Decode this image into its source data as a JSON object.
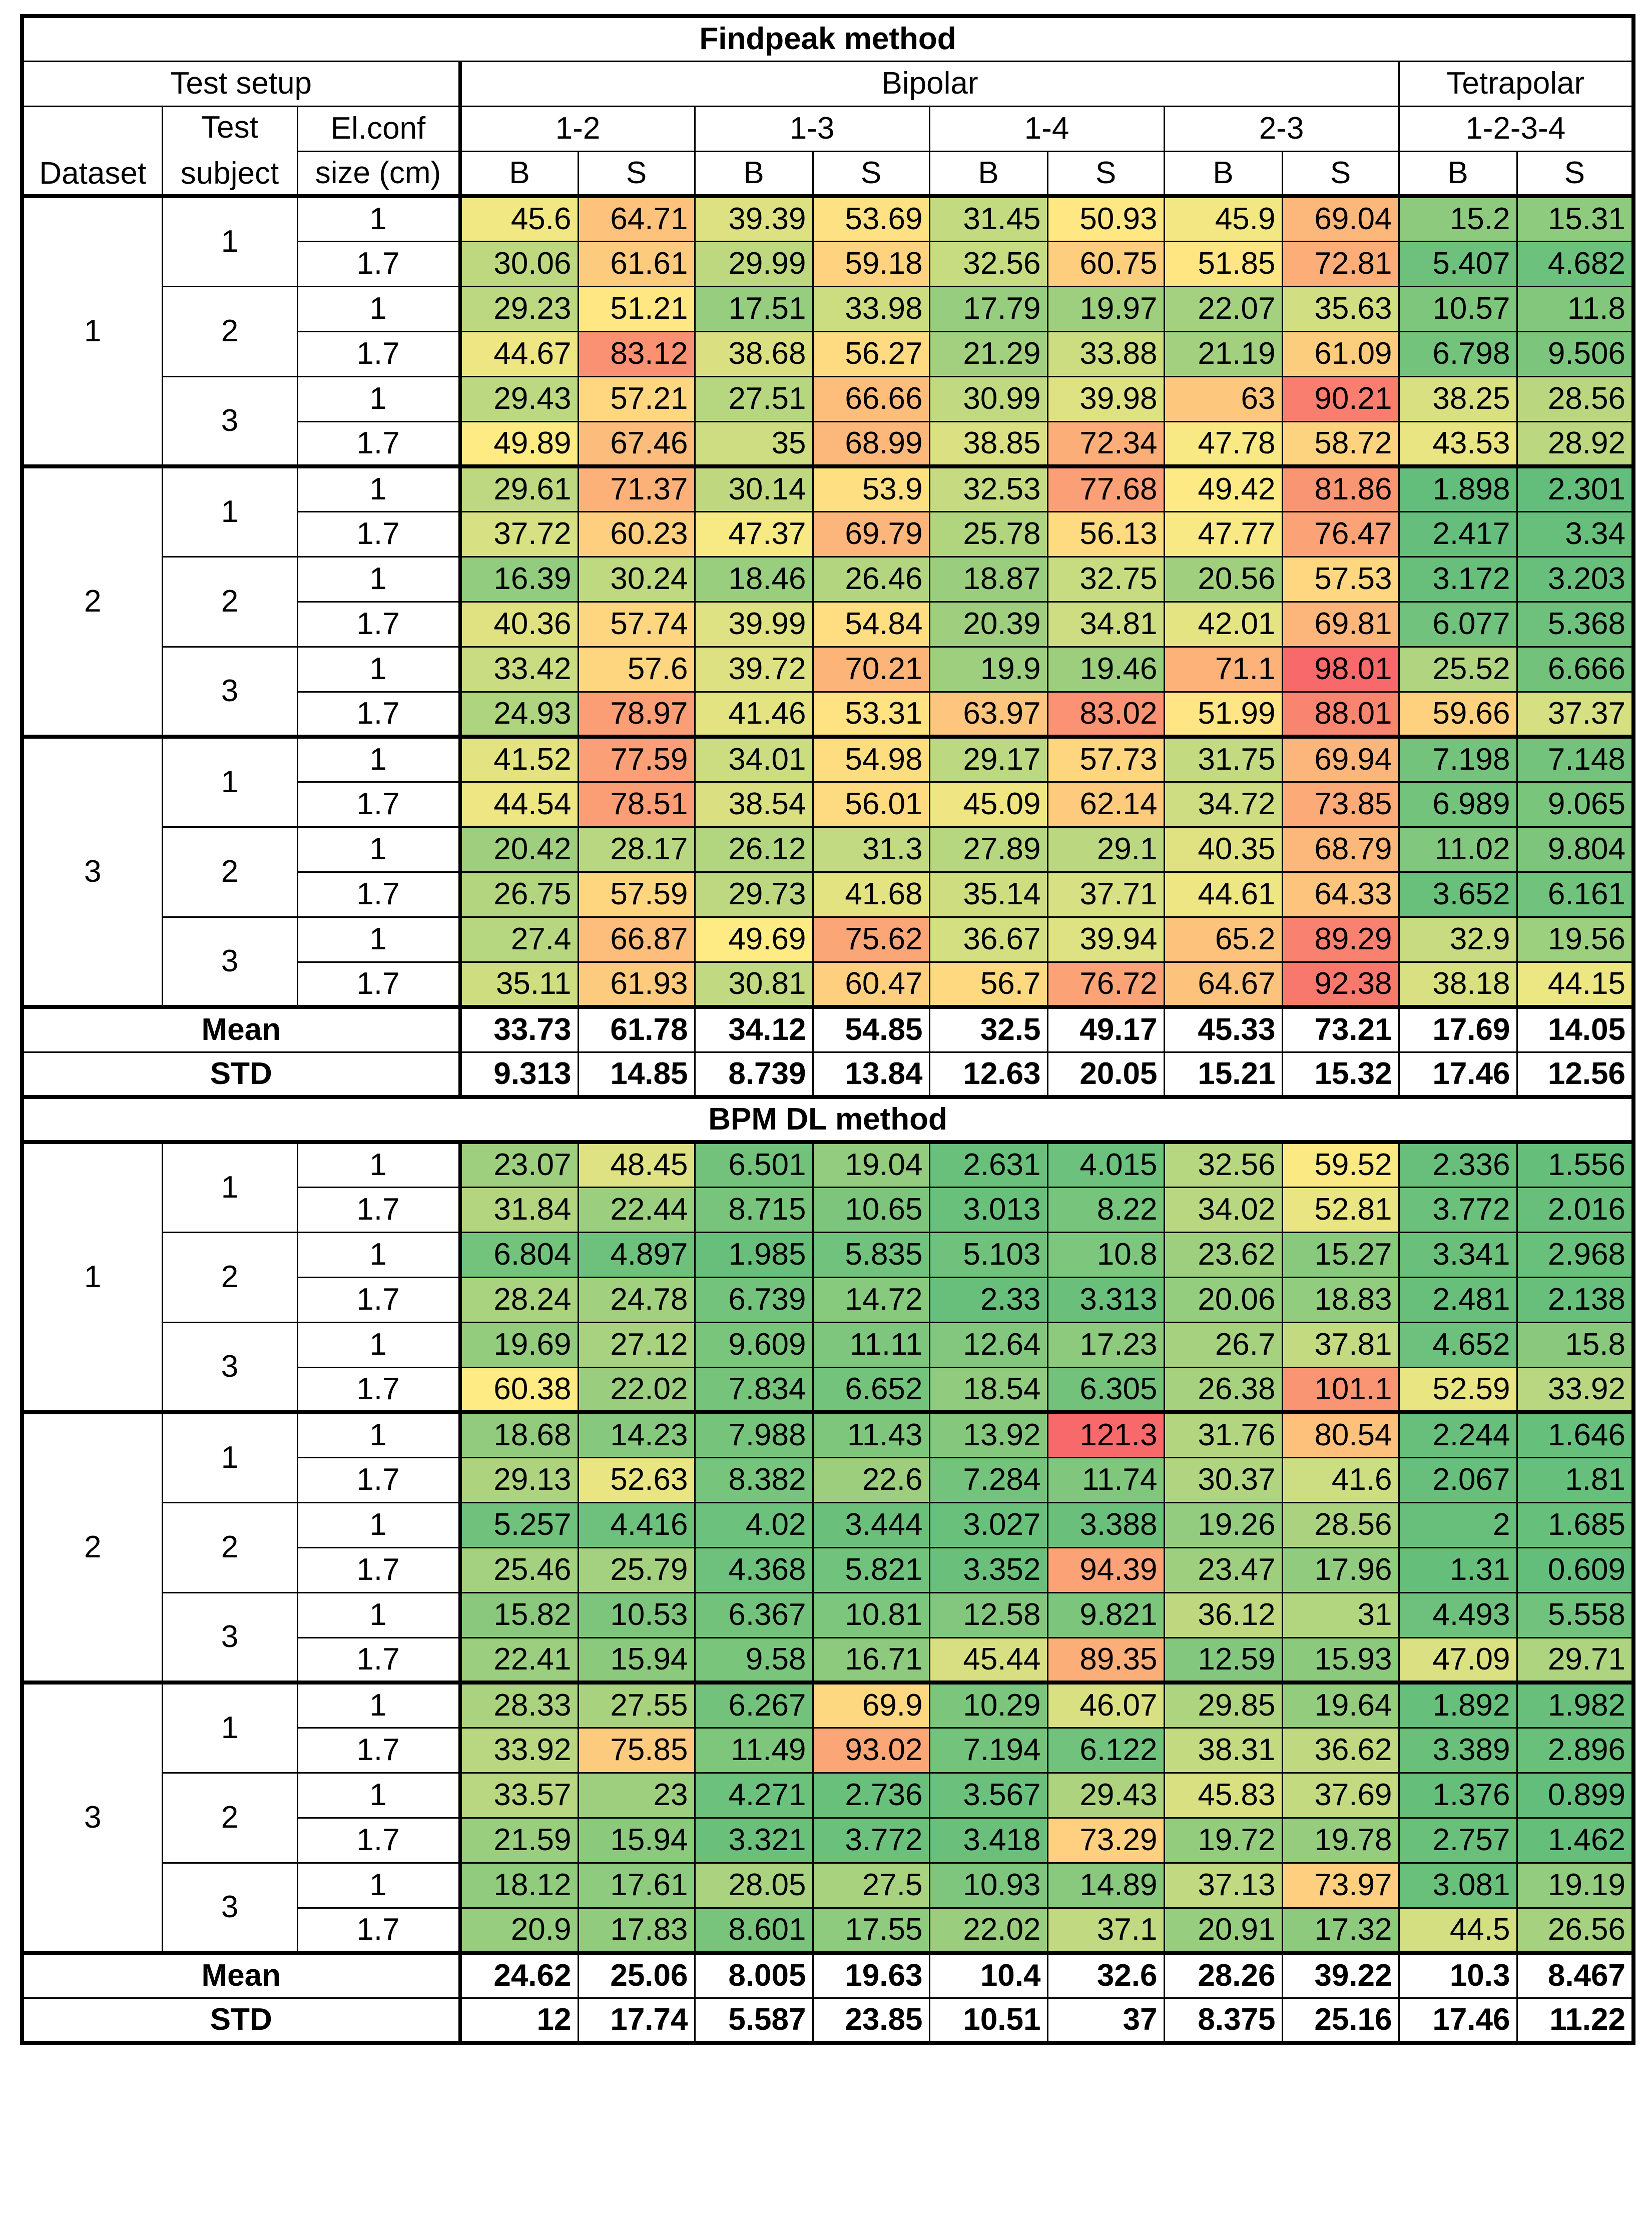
{
  "header": {
    "title1": "Findpeak method",
    "title2": "BPM DL method",
    "test_setup": "Test setup",
    "bipolar": "Bipolar",
    "tetrapolar": "Tetrapolar",
    "dataset": "Dataset",
    "test_subject_1": "Test",
    "test_subject_2": "subject",
    "elconf_1": "El.conf",
    "elconf_2": "size (cm)",
    "configs": [
      "1-2",
      "1-3",
      "1-4",
      "2-3",
      "1-2-3-4"
    ],
    "sub_cols": [
      "B",
      "S",
      "B",
      "S",
      "B",
      "S",
      "B",
      "S",
      "B",
      "S"
    ]
  },
  "findpeak": {
    "rows": [
      {
        "dataset": "1",
        "subject": "1",
        "size": "1",
        "values": [
          "45.6",
          "64.71",
          "39.39",
          "53.69",
          "31.45",
          "50.93",
          "45.9",
          "69.04",
          "15.2",
          "15.31"
        ]
      },
      {
        "dataset": "1",
        "subject": "1",
        "size": "1.7",
        "values": [
          "30.06",
          "61.61",
          "29.99",
          "59.18",
          "32.56",
          "60.75",
          "51.85",
          "72.81",
          "5.407",
          "4.682"
        ]
      },
      {
        "dataset": "1",
        "subject": "2",
        "size": "1",
        "values": [
          "29.23",
          "51.21",
          "17.51",
          "33.98",
          "17.79",
          "19.97",
          "22.07",
          "35.63",
          "10.57",
          "11.8"
        ]
      },
      {
        "dataset": "1",
        "subject": "2",
        "size": "1.7",
        "values": [
          "44.67",
          "83.12",
          "38.68",
          "56.27",
          "21.29",
          "33.88",
          "21.19",
          "61.09",
          "6.798",
          "9.506"
        ]
      },
      {
        "dataset": "1",
        "subject": "3",
        "size": "1",
        "values": [
          "29.43",
          "57.21",
          "27.51",
          "66.66",
          "30.99",
          "39.98",
          "63",
          "90.21",
          "38.25",
          "28.56"
        ]
      },
      {
        "dataset": "1",
        "subject": "3",
        "size": "1.7",
        "values": [
          "49.89",
          "67.46",
          "35",
          "68.99",
          "38.85",
          "72.34",
          "47.78",
          "58.72",
          "43.53",
          "28.92"
        ]
      },
      {
        "dataset": "2",
        "subject": "1",
        "size": "1",
        "values": [
          "29.61",
          "71.37",
          "30.14",
          "53.9",
          "32.53",
          "77.68",
          "49.42",
          "81.86",
          "1.898",
          "2.301"
        ]
      },
      {
        "dataset": "2",
        "subject": "1",
        "size": "1.7",
        "values": [
          "37.72",
          "60.23",
          "47.37",
          "69.79",
          "25.78",
          "56.13",
          "47.77",
          "76.47",
          "2.417",
          "3.34"
        ]
      },
      {
        "dataset": "2",
        "subject": "2",
        "size": "1",
        "values": [
          "16.39",
          "30.24",
          "18.46",
          "26.46",
          "18.87",
          "32.75",
          "20.56",
          "57.53",
          "3.172",
          "3.203"
        ]
      },
      {
        "dataset": "2",
        "subject": "2",
        "size": "1.7",
        "values": [
          "40.36",
          "57.74",
          "39.99",
          "54.84",
          "20.39",
          "34.81",
          "42.01",
          "69.81",
          "6.077",
          "5.368"
        ]
      },
      {
        "dataset": "2",
        "subject": "3",
        "size": "1",
        "values": [
          "33.42",
          "57.6",
          "39.72",
          "70.21",
          "19.9",
          "19.46",
          "71.1",
          "98.01",
          "25.52",
          "6.666"
        ]
      },
      {
        "dataset": "2",
        "subject": "3",
        "size": "1.7",
        "values": [
          "24.93",
          "78.97",
          "41.46",
          "53.31",
          "63.97",
          "83.02",
          "51.99",
          "88.01",
          "59.66",
          "37.37"
        ]
      },
      {
        "dataset": "3",
        "subject": "1",
        "size": "1",
        "values": [
          "41.52",
          "77.59",
          "34.01",
          "54.98",
          "29.17",
          "57.73",
          "31.75",
          "69.94",
          "7.198",
          "7.148"
        ]
      },
      {
        "dataset": "3",
        "subject": "1",
        "size": "1.7",
        "values": [
          "44.54",
          "78.51",
          "38.54",
          "56.01",
          "45.09",
          "62.14",
          "34.72",
          "73.85",
          "6.989",
          "9.065"
        ]
      },
      {
        "dataset": "3",
        "subject": "2",
        "size": "1",
        "values": [
          "20.42",
          "28.17",
          "26.12",
          "31.3",
          "27.89",
          "29.1",
          "40.35",
          "68.79",
          "11.02",
          "9.804"
        ]
      },
      {
        "dataset": "3",
        "subject": "2",
        "size": "1.7",
        "values": [
          "26.75",
          "57.59",
          "29.73",
          "41.68",
          "35.14",
          "37.71",
          "44.61",
          "64.33",
          "3.652",
          "6.161"
        ]
      },
      {
        "dataset": "3",
        "subject": "3",
        "size": "1",
        "values": [
          "27.4",
          "66.87",
          "49.69",
          "75.62",
          "36.67",
          "39.94",
          "65.2",
          "89.29",
          "32.9",
          "19.56"
        ]
      },
      {
        "dataset": "3",
        "subject": "3",
        "size": "1.7",
        "values": [
          "35.11",
          "61.93",
          "30.81",
          "60.47",
          "56.7",
          "76.72",
          "64.67",
          "92.38",
          "38.18",
          "44.15"
        ]
      }
    ],
    "mean_label": "Mean",
    "mean": [
      "33.73",
      "61.78",
      "34.12",
      "54.85",
      "32.5",
      "49.17",
      "45.33",
      "73.21",
      "17.69",
      "14.05"
    ],
    "std_label": "STD",
    "std": [
      "9.313",
      "14.85",
      "8.739",
      "13.84",
      "12.63",
      "20.05",
      "15.21",
      "15.32",
      "17.46",
      "12.56"
    ]
  },
  "bpm": {
    "rows": [
      {
        "dataset": "1",
        "subject": "1",
        "size": "1",
        "values": [
          "23.07",
          "48.45",
          "6.501",
          "19.04",
          "2.631",
          "4.015",
          "32.56",
          "59.52",
          "2.336",
          "1.556"
        ]
      },
      {
        "dataset": "1",
        "subject": "1",
        "size": "1.7",
        "values": [
          "31.84",
          "22.44",
          "8.715",
          "10.65",
          "3.013",
          "8.22",
          "34.02",
          "52.81",
          "3.772",
          "2.016"
        ]
      },
      {
        "dataset": "1",
        "subject": "2",
        "size": "1",
        "values": [
          "6.804",
          "4.897",
          "1.985",
          "5.835",
          "5.103",
          "10.8",
          "23.62",
          "15.27",
          "3.341",
          "2.968"
        ]
      },
      {
        "dataset": "1",
        "subject": "2",
        "size": "1.7",
        "values": [
          "28.24",
          "24.78",
          "6.739",
          "14.72",
          "2.33",
          "3.313",
          "20.06",
          "18.83",
          "2.481",
          "2.138"
        ]
      },
      {
        "dataset": "1",
        "subject": "3",
        "size": "1",
        "values": [
          "19.69",
          "27.12",
          "9.609",
          "11.11",
          "12.64",
          "17.23",
          "26.7",
          "37.81",
          "4.652",
          "15.8"
        ]
      },
      {
        "dataset": "1",
        "subject": "3",
        "size": "1.7",
        "values": [
          "60.38",
          "22.02",
          "7.834",
          "6.652",
          "18.54",
          "6.305",
          "26.38",
          "101.1",
          "52.59",
          "33.92"
        ]
      },
      {
        "dataset": "2",
        "subject": "1",
        "size": "1",
        "values": [
          "18.68",
          "14.23",
          "7.988",
          "11.43",
          "13.92",
          "121.3",
          "31.76",
          "80.54",
          "2.244",
          "1.646"
        ]
      },
      {
        "dataset": "2",
        "subject": "1",
        "size": "1.7",
        "values": [
          "29.13",
          "52.63",
          "8.382",
          "22.6",
          "7.284",
          "11.74",
          "30.37",
          "41.6",
          "2.067",
          "1.81"
        ]
      },
      {
        "dataset": "2",
        "subject": "2",
        "size": "1",
        "values": [
          "5.257",
          "4.416",
          "4.02",
          "3.444",
          "3.027",
          "3.388",
          "19.26",
          "28.56",
          "2",
          "1.685"
        ]
      },
      {
        "dataset": "2",
        "subject": "2",
        "size": "1.7",
        "values": [
          "25.46",
          "25.79",
          "4.368",
          "5.821",
          "3.352",
          "94.39",
          "23.47",
          "17.96",
          "1.31",
          "0.609"
        ]
      },
      {
        "dataset": "2",
        "subject": "3",
        "size": "1",
        "values": [
          "15.82",
          "10.53",
          "6.367",
          "10.81",
          "12.58",
          "9.821",
          "36.12",
          "31",
          "4.493",
          "5.558"
        ]
      },
      {
        "dataset": "2",
        "subject": "3",
        "size": "1.7",
        "values": [
          "22.41",
          "15.94",
          "9.58",
          "16.71",
          "45.44",
          "89.35",
          "12.59",
          "15.93",
          "47.09",
          "29.71"
        ]
      },
      {
        "dataset": "3",
        "subject": "1",
        "size": "1",
        "values": [
          "28.33",
          "27.55",
          "6.267",
          "69.9",
          "10.29",
          "46.07",
          "29.85",
          "19.64",
          "1.892",
          "1.982"
        ]
      },
      {
        "dataset": "3",
        "subject": "1",
        "size": "1.7",
        "values": [
          "33.92",
          "75.85",
          "11.49",
          "93.02",
          "7.194",
          "6.122",
          "38.31",
          "36.62",
          "3.389",
          "2.896"
        ]
      },
      {
        "dataset": "3",
        "subject": "2",
        "size": "1",
        "values": [
          "33.57",
          "23",
          "4.271",
          "2.736",
          "3.567",
          "29.43",
          "45.83",
          "37.69",
          "1.376",
          "0.899"
        ]
      },
      {
        "dataset": "3",
        "subject": "2",
        "size": "1.7",
        "values": [
          "21.59",
          "15.94",
          "3.321",
          "3.772",
          "3.418",
          "73.29",
          "19.72",
          "19.78",
          "2.757",
          "1.462"
        ]
      },
      {
        "dataset": "3",
        "subject": "3",
        "size": "1",
        "values": [
          "18.12",
          "17.61",
          "28.05",
          "27.5",
          "10.93",
          "14.89",
          "37.13",
          "73.97",
          "3.081",
          "19.19"
        ]
      },
      {
        "dataset": "3",
        "subject": "3",
        "size": "1.7",
        "values": [
          "20.9",
          "17.83",
          "8.601",
          "17.55",
          "22.02",
          "37.1",
          "20.91",
          "17.32",
          "44.5",
          "26.56"
        ]
      }
    ],
    "mean_label": "Mean",
    "mean": [
      "24.62",
      "25.06",
      "8.005",
      "19.63",
      "10.4",
      "32.6",
      "28.26",
      "39.22",
      "10.3",
      "8.467"
    ],
    "std_label": "STD",
    "std": [
      "12",
      "17.74",
      "5.587",
      "23.85",
      "10.51",
      "37",
      "8.375",
      "25.16",
      "17.46",
      "11.22"
    ]
  },
  "colors": {
    "low": "#63be7b",
    "mid": "#ffeb84",
    "high": "#f8696b"
  }
}
